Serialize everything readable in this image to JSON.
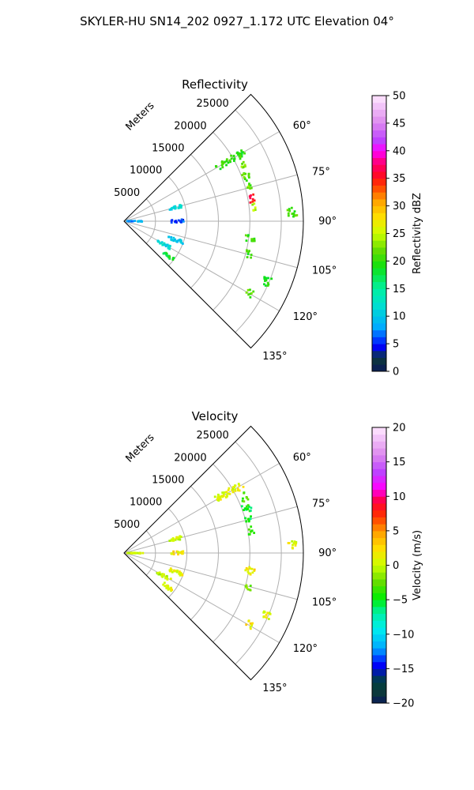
{
  "figure": {
    "title": "SKYLER-HU  SN14_202  0927_1.172 UTC Elevation 04°"
  },
  "chart_data": [
    {
      "type": "scatter",
      "projection": "polar-sector",
      "title": "Reflectivity",
      "range_label": "Meters",
      "range_ticks": [
        "5000",
        "10000",
        "15000",
        "20000",
        "25000"
      ],
      "range_values": [
        5000,
        10000,
        15000,
        20000,
        25000
      ],
      "range_max": 28500,
      "azimuth_ticks": [
        "60°",
        "75°",
        "90°",
        "105°",
        "120°",
        "135°"
      ],
      "azimuth_values": [
        60,
        75,
        90,
        105,
        120,
        135
      ],
      "azimuth_range": [
        45,
        135
      ],
      "grid": true,
      "colorbar": {
        "label": "Reflectivity dBZ",
        "min": 0,
        "max": 50,
        "ticks": [
          "0",
          "5",
          "10",
          "15",
          "20",
          "25",
          "30",
          "35",
          "40",
          "45",
          "50"
        ],
        "tick_values": [
          0,
          5,
          10,
          15,
          20,
          25,
          30,
          35,
          40,
          45,
          50
        ]
      },
      "clusters": [
        {
          "az": 60,
          "r": [
            17000,
            22000
          ],
          "value": 20
        },
        {
          "az": 65,
          "r": [
            20500,
            21500
          ],
          "value": 22
        },
        {
          "az": 70,
          "r": [
            20000,
            21500
          ],
          "value": 21
        },
        {
          "az": 75,
          "r": [
            20000,
            21000
          ],
          "value": 22
        },
        {
          "az": 80,
          "r": [
            20000,
            21000
          ],
          "value": 35
        },
        {
          "az": 84,
          "r": [
            20500,
            21000
          ],
          "value": 24
        },
        {
          "az": 87,
          "r": [
            26000,
            27500
          ],
          "value": 21
        },
        {
          "az": 98,
          "r": [
            19500,
            21000
          ],
          "value": 20
        },
        {
          "az": 105,
          "r": [
            20000,
            21000
          ],
          "value": 20
        },
        {
          "az": 113,
          "r": [
            24000,
            25500
          ],
          "value": 20
        },
        {
          "az": 120,
          "r": [
            22500,
            23500
          ],
          "value": 21
        },
        {
          "az": 75,
          "r": [
            7500,
            9500
          ],
          "value": 11
        },
        {
          "az": 90,
          "r": [
            7500,
            9500
          ],
          "value": 6
        },
        {
          "az": 110,
          "r": [
            7500,
            10000
          ],
          "value": 10
        },
        {
          "az": 120,
          "r": [
            6000,
            8500
          ],
          "value": 11
        },
        {
          "az": 90,
          "r": [
            500,
            3000
          ],
          "value": 8
        },
        {
          "az": 128,
          "r": [
            8000,
            10000
          ],
          "value": 19
        }
      ]
    },
    {
      "type": "scatter",
      "projection": "polar-sector",
      "title": "Velocity",
      "range_label": "Meters",
      "range_ticks": [
        "5000",
        "10000",
        "15000",
        "20000",
        "25000"
      ],
      "range_values": [
        5000,
        10000,
        15000,
        20000,
        25000
      ],
      "range_max": 28500,
      "azimuth_ticks": [
        "60°",
        "75°",
        "90°",
        "105°",
        "120°",
        "135°"
      ],
      "azimuth_values": [
        60,
        75,
        90,
        105,
        120,
        135
      ],
      "azimuth_range": [
        45,
        135
      ],
      "grid": true,
      "colorbar": {
        "label": "Velocity (m/s)",
        "min": -20,
        "max": 20,
        "ticks": [
          "−20",
          "−15",
          "−10",
          "−5",
          "0",
          "5",
          "10",
          "15",
          "20"
        ],
        "tick_values": [
          -20,
          -15,
          -10,
          -5,
          0,
          5,
          10,
          15,
          20
        ]
      },
      "clusters": [
        {
          "az": 60,
          "r": [
            17000,
            22000
          ],
          "value": 1
        },
        {
          "az": 65,
          "r": [
            20500,
            21500
          ],
          "value": -3
        },
        {
          "az": 70,
          "r": [
            20000,
            21500
          ],
          "value": -5
        },
        {
          "az": 75,
          "r": [
            20000,
            21000
          ],
          "value": -5
        },
        {
          "az": 80,
          "r": [
            20000,
            21000
          ],
          "value": -4
        },
        {
          "az": 87,
          "r": [
            26000,
            27500
          ],
          "value": 1
        },
        {
          "az": 98,
          "r": [
            19500,
            21000
          ],
          "value": 2
        },
        {
          "az": 105,
          "r": [
            20000,
            21000
          ],
          "value": -2
        },
        {
          "az": 113,
          "r": [
            24000,
            25500
          ],
          "value": 1
        },
        {
          "az": 120,
          "r": [
            22500,
            23500
          ],
          "value": 2
        },
        {
          "az": 75,
          "r": [
            7500,
            9500
          ],
          "value": 0
        },
        {
          "az": 90,
          "r": [
            7500,
            9500
          ],
          "value": 2
        },
        {
          "az": 110,
          "r": [
            7500,
            10000
          ],
          "value": 1
        },
        {
          "az": 120,
          "r": [
            6000,
            8500
          ],
          "value": 0
        },
        {
          "az": 90,
          "r": [
            500,
            3000
          ],
          "value": 0
        },
        {
          "az": 128,
          "r": [
            8000,
            10000
          ],
          "value": 1
        }
      ]
    }
  ]
}
